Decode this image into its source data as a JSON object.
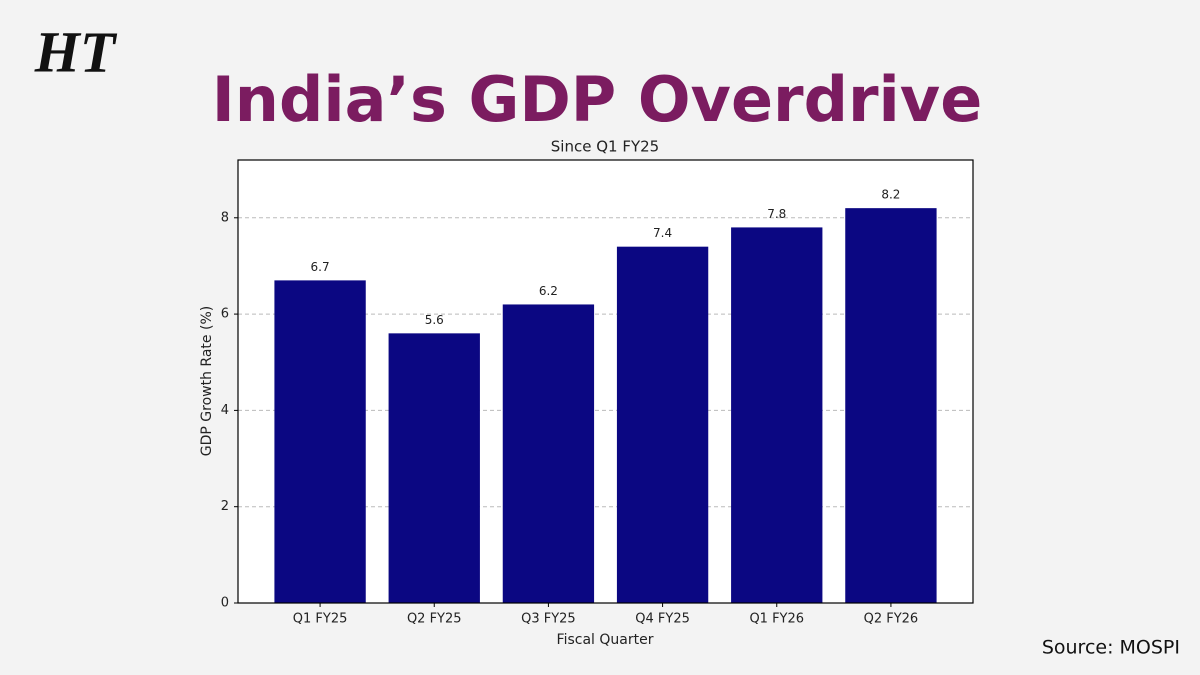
{
  "logo": "HT",
  "chart_data": {
    "type": "bar",
    "title": "India’s GDP Overdrive",
    "subtitle": "Since Q1 FY25",
    "xlabel": "Fiscal Quarter",
    "ylabel": "GDP Growth Rate (%)",
    "categories": [
      "Q1 FY25",
      "Q2 FY25",
      "Q3 FY25",
      "Q4 FY25",
      "Q1 FY26",
      "Q2 FY26"
    ],
    "values": [
      6.7,
      5.6,
      6.2,
      7.4,
      7.8,
      8.2
    ],
    "color": "#0b0782",
    "ylim": [
      0,
      9.2
    ],
    "yticks": [
      0,
      2,
      4,
      6,
      8
    ],
    "grid": true,
    "source": "Source: MOSPI"
  }
}
